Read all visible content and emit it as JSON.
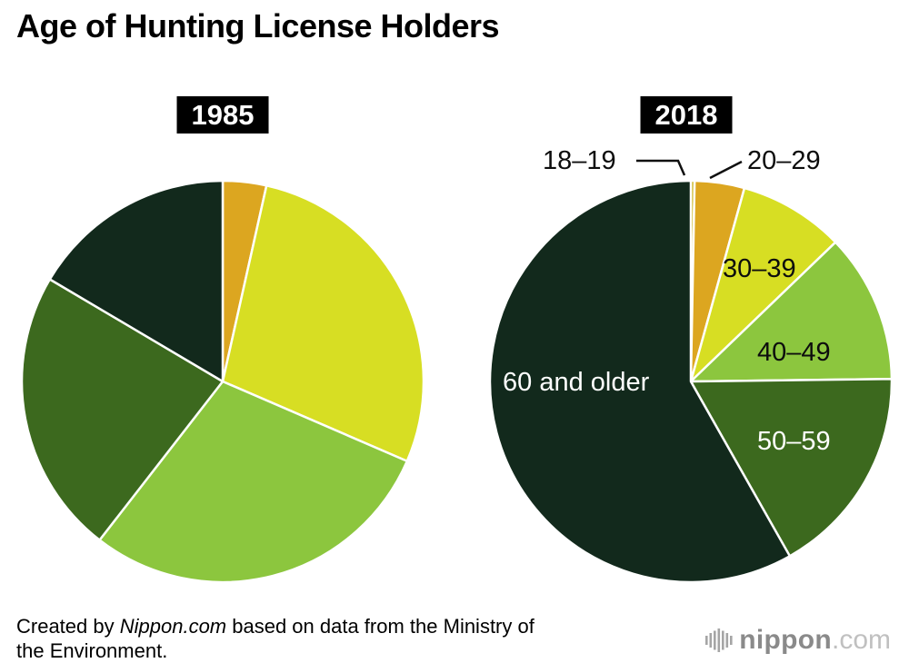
{
  "page": {
    "title": "Age of Hunting License Holders"
  },
  "chart_data": [
    {
      "type": "pie",
      "title": "1985",
      "unit": "percent",
      "start_angle": "top",
      "direction": "clockwise",
      "slices": [
        {
          "label": "20–29",
          "value": 3.5,
          "color": "#DCA620"
        },
        {
          "label": "30–39",
          "value": 28,
          "color": "#D7DE23"
        },
        {
          "label": "40–49",
          "value": 29,
          "color": "#8CC63E"
        },
        {
          "label": "50–59",
          "value": 23,
          "color": "#3C691E"
        },
        {
          "label": "60 and older",
          "value": 16.5,
          "color": "#12291C"
        }
      ]
    },
    {
      "type": "pie",
      "title": "2018",
      "unit": "percent",
      "start_angle": "top",
      "direction": "clockwise",
      "slices": [
        {
          "label": "18–19",
          "value": 0.3,
          "color": "#C9B31A"
        },
        {
          "label": "20–29",
          "value": 4,
          "color": "#DCA620"
        },
        {
          "label": "30–39",
          "value": 8.5,
          "color": "#D7DE23"
        },
        {
          "label": "40–49",
          "value": 12,
          "color": "#8CC63E"
        },
        {
          "label": "50–59",
          "value": 17,
          "color": "#3C691E"
        },
        {
          "label": "60 and older",
          "value": 58.2,
          "color": "#12291C"
        }
      ]
    }
  ],
  "footer": {
    "credit_prefix": "Created by ",
    "credit_source": "Nippon.com",
    "credit_suffix_line1": " based on data from the Ministry of",
    "credit_line2": "the Environment.",
    "logo_name": "nippon",
    "logo_tld": ".com"
  }
}
